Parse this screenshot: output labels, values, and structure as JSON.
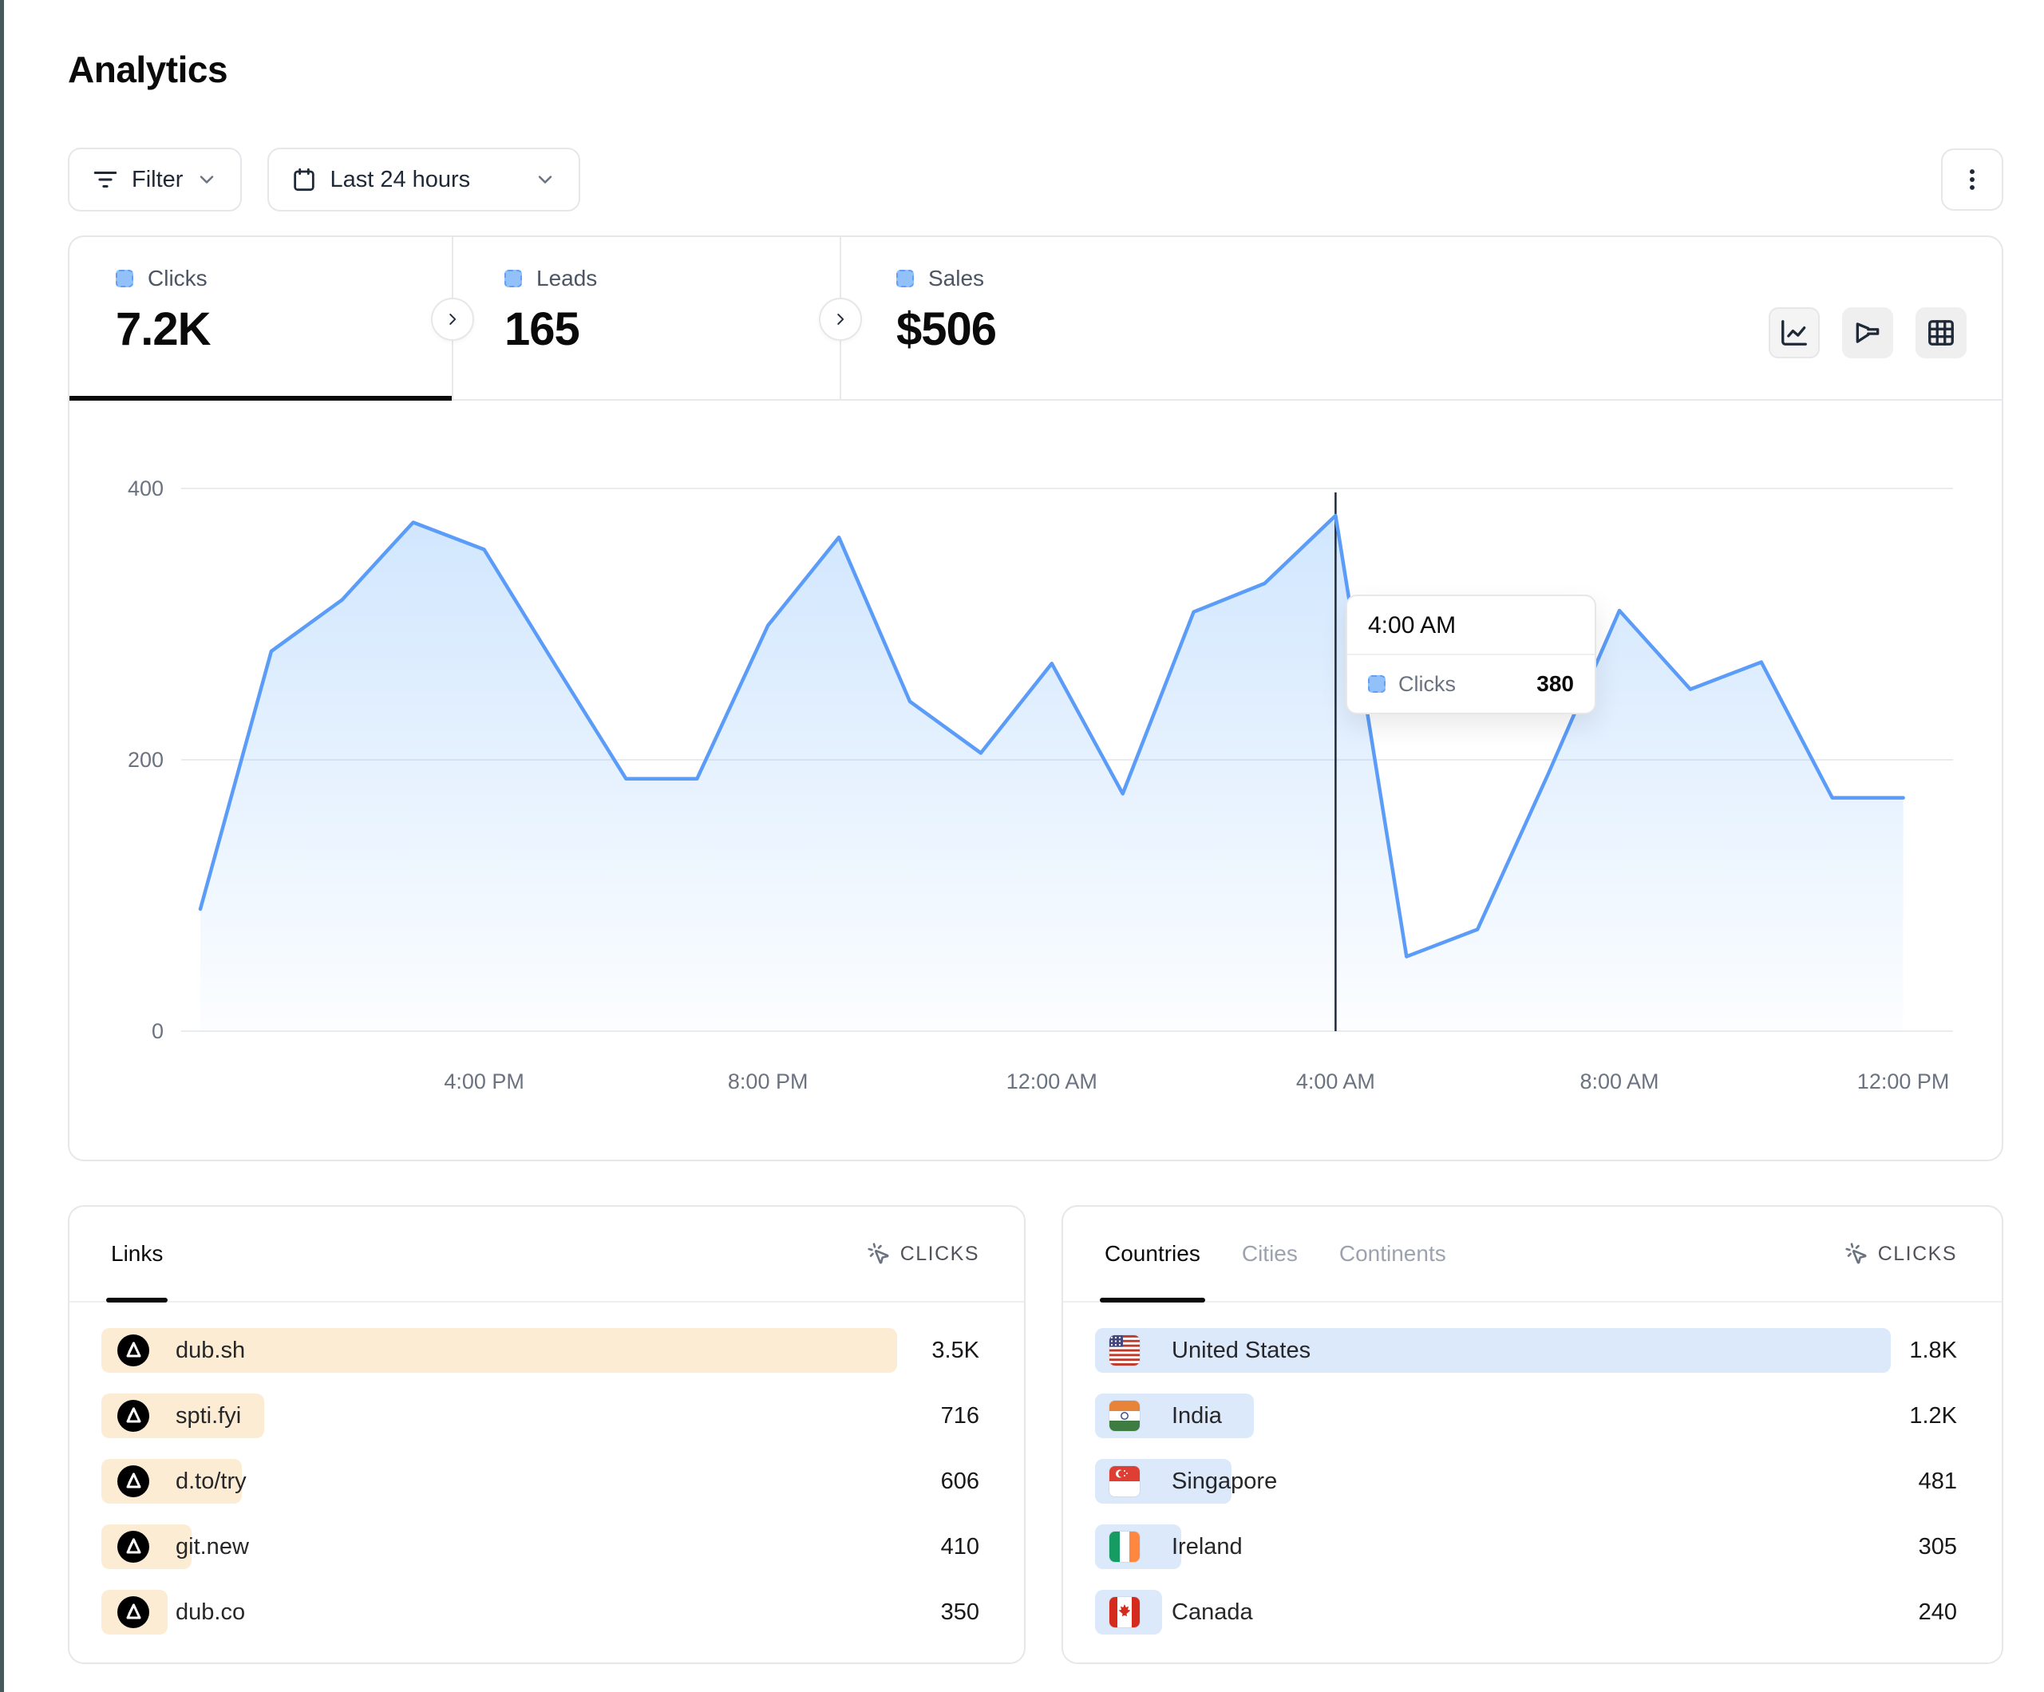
{
  "page": {
    "title": "Analytics"
  },
  "toolbar": {
    "filter": {
      "label": "Filter"
    },
    "date_range": {
      "label": "Last 24 hours"
    }
  },
  "stats": {
    "clicks": {
      "label": "Clicks",
      "value": "7.2K",
      "active": true
    },
    "leads": {
      "label": "Leads",
      "value": "165",
      "active": false
    },
    "sales": {
      "label": "Sales",
      "value": "$506",
      "active": false
    }
  },
  "chart_data": {
    "type": "area",
    "title": "",
    "x": [
      "12:00 PM",
      "1:00 PM",
      "2:00 PM",
      "3:00 PM",
      "4:00 PM",
      "5:00 PM",
      "6:00 PM",
      "7:00 PM",
      "8:00 PM",
      "9:00 PM",
      "10:00 PM",
      "11:00 PM",
      "12:00 AM",
      "1:00 AM",
      "2:00 AM",
      "3:00 AM",
      "4:00 AM",
      "5:00 AM",
      "6:00 AM",
      "7:00 AM",
      "8:00 AM",
      "9:00 AM",
      "10:00 AM",
      "11:00 AM",
      "12:00 PM"
    ],
    "series": [
      {
        "name": "Clicks",
        "values": [
          90,
          280,
          318,
          375,
          355,
          270,
          186,
          186,
          299,
          364,
          243,
          205,
          271,
          175,
          309,
          330,
          380,
          55,
          75,
          190,
          310,
          252,
          272,
          172,
          172
        ]
      }
    ],
    "ylim": [
      0,
      400
    ],
    "y_ticks": [
      0,
      200,
      400
    ],
    "x_tick_labels": [
      "4:00 PM",
      "8:00 PM",
      "12:00 AM",
      "4:00 AM",
      "8:00 AM",
      "12:00 PM"
    ],
    "x_tick_indices": [
      4,
      8,
      12,
      16,
      20,
      24
    ],
    "grid": "horizontal",
    "legend": false,
    "crosshair_index": 16,
    "tooltip": {
      "time": "4:00 AM",
      "series": "Clicks",
      "value": "380"
    }
  },
  "links_panel": {
    "tabs": [
      {
        "label": "Links",
        "active": true
      }
    ],
    "metric_label": "CLICKS",
    "rows": [
      {
        "label": "dub.sh",
        "value": "3.5K",
        "bar_pct": 90.6
      },
      {
        "label": "spti.fyi",
        "value": "716",
        "bar_pct": 18.5
      },
      {
        "label": "d.to/try",
        "value": "606",
        "bar_pct": 16.0
      },
      {
        "label": "git.new",
        "value": "410",
        "bar_pct": 10.3
      },
      {
        "label": "dub.co",
        "value": "350",
        "bar_pct": 7.5
      }
    ]
  },
  "geo_panel": {
    "tabs": [
      {
        "label": "Countries",
        "active": true
      },
      {
        "label": "Cities",
        "active": false
      },
      {
        "label": "Continents",
        "active": false
      }
    ],
    "metric_label": "CLICKS",
    "rows": [
      {
        "label": "United States",
        "value": "1.8K",
        "bar_pct": 92.3,
        "flag": "us"
      },
      {
        "label": "India",
        "value": "1.2K",
        "bar_pct": 18.4,
        "flag": "in"
      },
      {
        "label": "Singapore",
        "value": "481",
        "bar_pct": 15.8,
        "flag": "sg"
      },
      {
        "label": "Ireland",
        "value": "305",
        "bar_pct": 10.0,
        "flag": "ie"
      },
      {
        "label": "Canada",
        "value": "240",
        "bar_pct": 7.8,
        "flag": "ca"
      }
    ]
  },
  "colors": {
    "accent_blue": "#5b9cf8",
    "area_blue": "#93c5fd",
    "marker_blue": "#92c1f9",
    "bar_peach": "#fdecd4",
    "bar_blue": "#dbe9fb",
    "edge_teal": "#46595b",
    "grid_gray": "#e9ecef",
    "tick_gray": "#6b7280"
  }
}
